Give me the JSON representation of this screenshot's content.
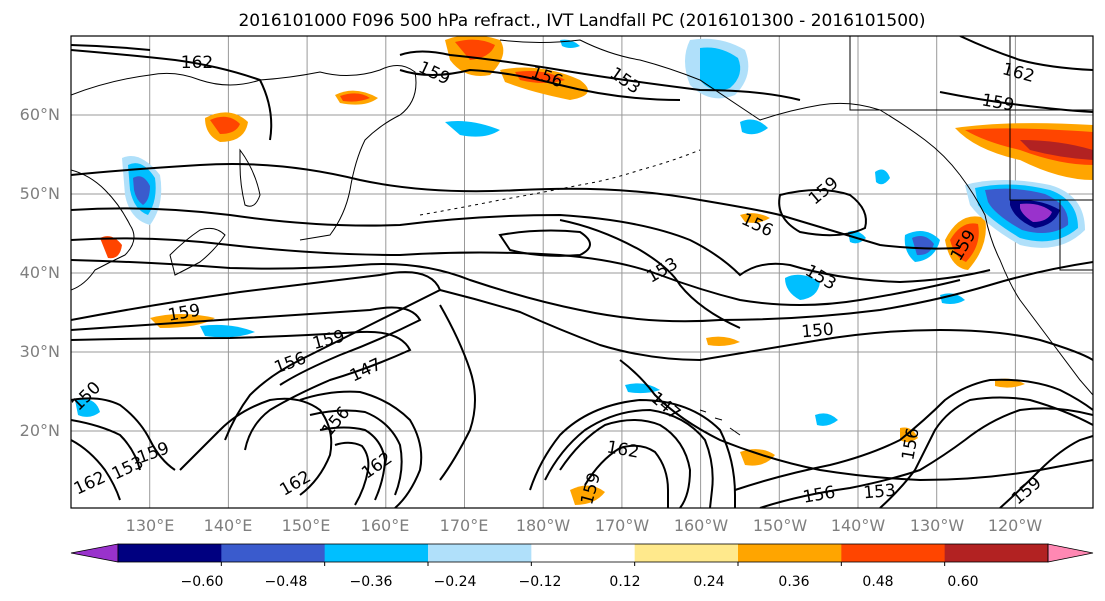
{
  "title": "2016101000 F096 500 hPa refract., IVT Landfall PC (2016101300 - 2016101500)",
  "map": {
    "lat_labels": [
      "60°N",
      "50°N",
      "40°N",
      "30°N",
      "20°N"
    ],
    "lon_labels": [
      "130°E",
      "140°E",
      "150°E",
      "160°E",
      "170°E",
      "180°W",
      "170°W",
      "160°W",
      "150°W",
      "140°W",
      "130°W",
      "120°W"
    ]
  },
  "colorbar": {
    "ticks": [
      "−0.60",
      "−0.48",
      "−0.36",
      "−0.24",
      "−0.12",
      "0.12",
      "0.24",
      "0.36",
      "0.48",
      "0.60"
    ],
    "colors": [
      "#9932cc",
      "#000080",
      "#3a5bcd",
      "#00bfff",
      "#b0e0fa",
      "#ffffff",
      "#ffe98c",
      "#ffa500",
      "#ff4500",
      "#b22222",
      "#ff88b3"
    ]
  },
  "contour_labels": [
    "162",
    "159",
    "156",
    "153",
    "162",
    "159",
    "159",
    "156",
    "153",
    "150",
    "159",
    "153",
    "156",
    "159",
    "147",
    "156",
    "147",
    "162",
    "159",
    "162",
    "162",
    "153",
    "159",
    "162",
    "156",
    "153",
    "156",
    "159",
    "150",
    "159"
  ]
}
